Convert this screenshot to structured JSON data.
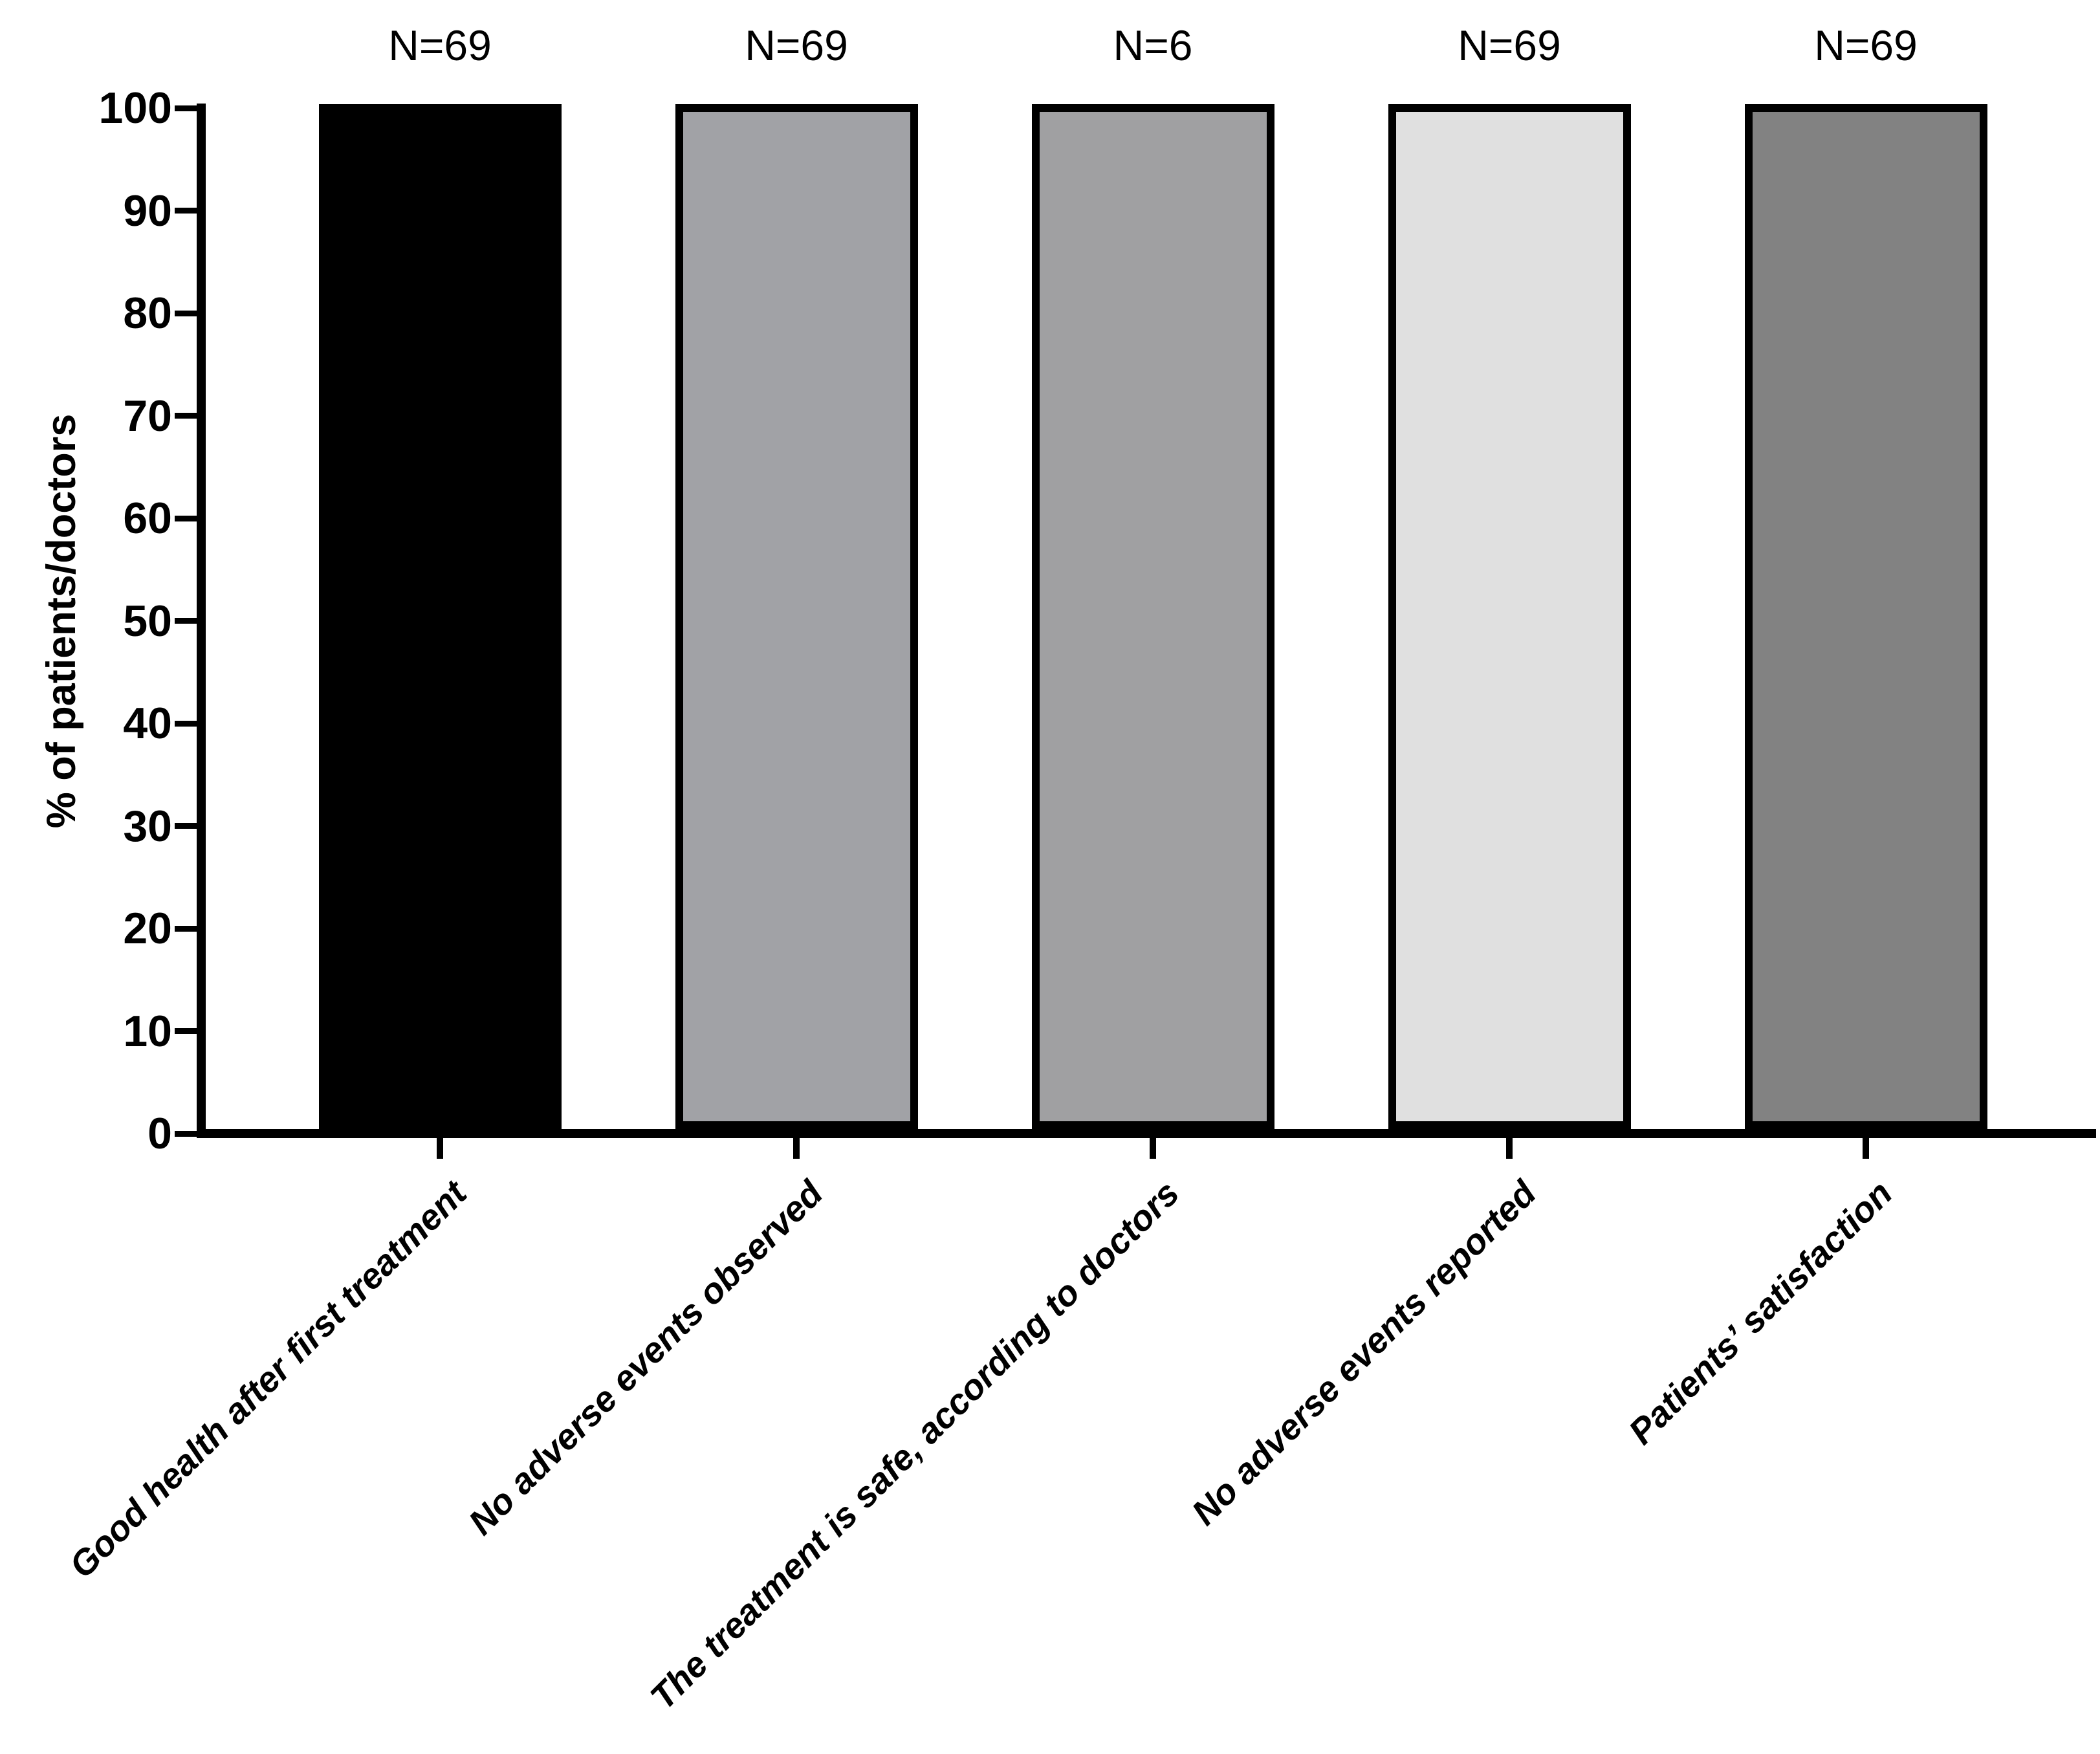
{
  "chart_data": {
    "type": "bar",
    "title": "",
    "xlabel": "",
    "ylabel": "% of patients/doctors",
    "ylim": [
      0,
      100
    ],
    "yticks": [
      0,
      10,
      20,
      30,
      40,
      50,
      60,
      70,
      80,
      90,
      100
    ],
    "grid": false,
    "legend_position": "none",
    "categories": [
      "Good health after first treatment",
      "No adverse events observed",
      "The treatment is safe, according to doctors",
      "No adverse events reported",
      "Patients’ satisfaction"
    ],
    "values": [
      100,
      100,
      100,
      100,
      100
    ],
    "bar_annotations": [
      "N=69",
      "N=69",
      "N=6",
      "N=69",
      "N=69"
    ],
    "bar_fill_colors": [
      "#000000",
      "#A1A2A6",
      "#A0A0A2",
      "#E0E0E0",
      "#828282"
    ],
    "bar_border_color": "#000000",
    "axis_color": "#000000",
    "background_color": "#ffffff",
    "category_label_rotation_deg": 45
  }
}
